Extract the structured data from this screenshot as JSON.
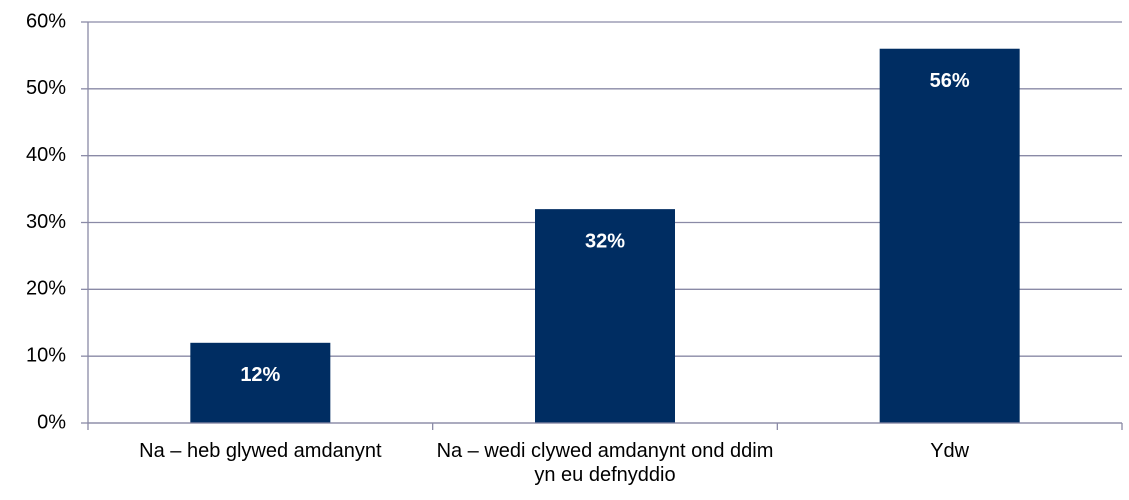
{
  "chart_data": {
    "type": "bar",
    "categories": [
      "Na – heb glywed amdanynt",
      "Na – wedi clywed amdanynt ond ddim yn eu defnyddio",
      "Ydw"
    ],
    "values": [
      12,
      32,
      56
    ],
    "value_labels": [
      "12%",
      "32%",
      "56%"
    ],
    "color": "#002d62",
    "ylim": [
      0,
      60
    ],
    "yticks": [
      {
        "value": 0,
        "label": "0%"
      },
      {
        "value": 10,
        "label": "10%"
      },
      {
        "value": 20,
        "label": "20%"
      },
      {
        "value": 30,
        "label": "30%"
      },
      {
        "value": 40,
        "label": "40%"
      },
      {
        "value": 50,
        "label": "50%"
      },
      {
        "value": 60,
        "label": "60%"
      }
    ],
    "grid": true
  }
}
